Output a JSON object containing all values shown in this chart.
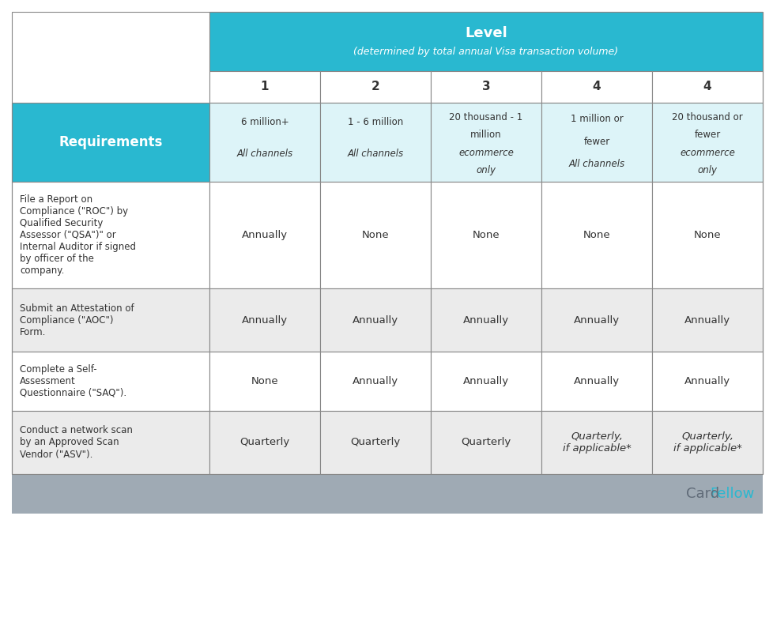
{
  "title": "Level",
  "subtitle": "(determined by total annual Visa transaction volume)",
  "header_bg": "#29b8d0",
  "subheader_bg": "#ddf4f8",
  "alt_row_bg": "#ebebeb",
  "white_bg": "#ffffff",
  "footer_bg": "#9faab4",
  "req_header_bg": "#29b8d0",
  "req_header_text": "Requirements",
  "columns": [
    "1",
    "2",
    "3",
    "4",
    "4"
  ],
  "col_descriptions": [
    "6 million+\nAll channels",
    "1 - 6 million\nAll channels",
    "20 thousand - 1\nmillion\necommerce\nonly",
    "1 million or\nfewer\nAll channels",
    "20 thousand or\nfewer\necommerce\nonly"
  ],
  "col_desc_italic": [
    [
      1
    ],
    [
      1
    ],
    [
      2,
      3
    ],
    [
      2
    ],
    [
      2,
      3
    ]
  ],
  "requirements": [
    "File a Report on\nCompliance (\"ROC\") by\nQualified Security\nAssessor (\"QSA\")\" or\nInternal Auditor if signed\nby officer of the\ncompany.",
    "Submit an Attestation of\nCompliance (\"AOC\")\nForm.",
    "Complete a Self-\nAssessment\nQuestionnaire (\"SAQ\").",
    "Conduct a network scan\nby an Approved Scan\nVendor (\"ASV\")."
  ],
  "data": [
    [
      "Annually",
      "None",
      "None",
      "None",
      "None"
    ],
    [
      "Annually",
      "Annually",
      "Annually",
      "Annually",
      "Annually"
    ],
    [
      "None",
      "Annually",
      "Annually",
      "Annually",
      "Annually"
    ],
    [
      "Quarterly",
      "Quarterly",
      "Quarterly",
      "Quarterly,\nif applicable*",
      "Quarterly,\nif applicable*"
    ]
  ],
  "data_italic": [
    [
      false,
      false,
      false,
      false,
      false
    ],
    [
      false,
      false,
      false,
      false,
      false
    ],
    [
      false,
      false,
      false,
      false,
      false
    ],
    [
      false,
      false,
      false,
      true,
      true
    ]
  ],
  "cardfellow_card": "Card",
  "cardfellow_fellow": "Fellow",
  "cardfellow_card_color": "#606b78",
  "cardfellow_fellow_color": "#29b8d0",
  "outer_bg": "#ffffff",
  "border_color": "#888888",
  "title_fontsize": 13,
  "subtitle_fontsize": 9,
  "col_num_fontsize": 11,
  "desc_fontsize": 8.5,
  "req_fontsize": 8.5,
  "cell_fontsize": 9.5,
  "req_header_fontsize": 12
}
